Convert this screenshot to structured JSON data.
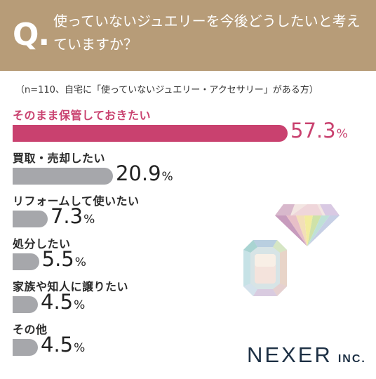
{
  "header": {
    "q_mark": "Q.",
    "question": "使っていないジュエリーを今後どうしたいと考えていますか？"
  },
  "note": "（n=110、自宅に「使っていないジュエリー・アクセサリー」がある方）",
  "logo": {
    "main": "NEXER",
    "sub": "INC."
  },
  "colors": {
    "header": "#b79c78",
    "highlight": "#c9416f",
    "bar": "#a6a7ab"
  },
  "chart_data": {
    "type": "bar",
    "orientation": "horizontal",
    "categories": [
      "そのまま保管しておきたい",
      "買取・売却したい",
      "リフォームして使いたい",
      "処分したい",
      "家族や知人に譲りたい",
      "その他"
    ],
    "values": [
      57.3,
      20.9,
      7.3,
      5.5,
      4.5,
      4.5
    ],
    "value_labels": [
      "57.3",
      "20.9",
      "7.3",
      "5.5",
      "4.5",
      "4.5"
    ],
    "unit": "%",
    "title": "使っていないジュエリーを今後どうしたいと考えていますか？",
    "xlabel": "",
    "ylabel": "",
    "grid": false,
    "legend": "none"
  }
}
